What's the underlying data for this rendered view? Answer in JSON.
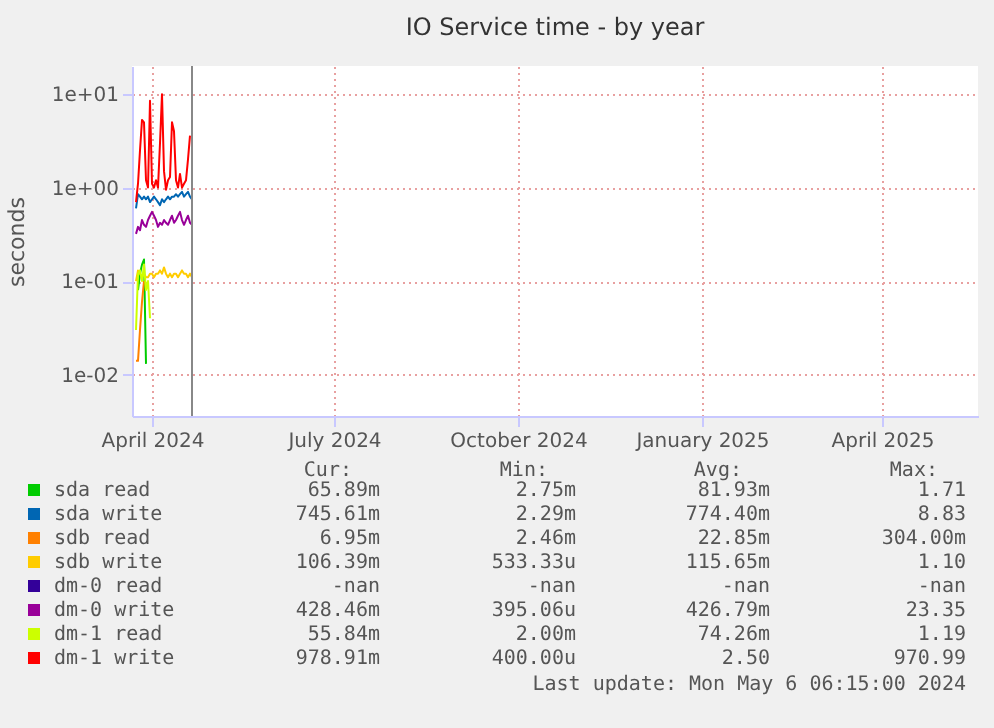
{
  "chart_data": {
    "type": "line",
    "title": "IO Service time - by year",
    "ylabel": "seconds",
    "x": [
      "2024-04-08",
      "2024-04-09",
      "2024-04-10",
      "2024-04-11",
      "2024-04-12",
      "2024-04-13",
      "2024-04-14",
      "2024-04-15",
      "2024-04-16",
      "2024-04-17",
      "2024-04-18",
      "2024-04-19",
      "2024-04-20",
      "2024-04-21",
      "2024-04-22",
      "2024-04-23",
      "2024-04-24",
      "2024-04-25",
      "2024-04-26",
      "2024-04-27",
      "2024-04-28",
      "2024-04-29",
      "2024-04-30",
      "2024-05-01",
      "2024-05-02",
      "2024-05-03",
      "2024-05-04",
      "2024-05-05",
      "2024-05-06"
    ],
    "series": [
      {
        "name": "sda read",
        "color": "#00cc00",
        "values": [
          null,
          0.08,
          0.12,
          0.15,
          0.17,
          0.013,
          null,
          null,
          null,
          null,
          null,
          null,
          null,
          null,
          null,
          null,
          null,
          null,
          null,
          null,
          null,
          null,
          null,
          null,
          null,
          null,
          null,
          null,
          null
        ]
      },
      {
        "name": "sda write",
        "color": "#0066b3",
        "values": [
          0.6,
          0.85,
          0.8,
          0.75,
          0.8,
          0.75,
          0.8,
          0.7,
          0.75,
          0.8,
          0.75,
          0.7,
          0.65,
          0.75,
          0.7,
          0.75,
          0.8,
          0.75,
          0.8,
          0.8,
          0.85,
          0.8,
          0.85,
          0.9,
          0.8,
          0.85,
          0.9,
          0.8,
          0.75
        ]
      },
      {
        "name": "sdb read",
        "color": "#ff8000",
        "values": [
          0.014,
          0.014,
          0.03,
          0.06,
          0.1,
          null,
          null,
          null,
          null,
          null,
          null,
          null,
          null,
          null,
          null,
          null,
          null,
          null,
          null,
          null,
          null,
          null,
          null,
          null,
          null,
          null,
          null,
          null,
          null
        ]
      },
      {
        "name": "sdb write",
        "color": "#ffcc00",
        "values": [
          0.1,
          0.13,
          0.12,
          0.11,
          0.12,
          0.11,
          0.11,
          0.12,
          0.12,
          0.11,
          0.12,
          0.12,
          0.13,
          0.12,
          0.14,
          0.12,
          0.11,
          0.12,
          0.11,
          0.12,
          0.12,
          0.11,
          0.12,
          0.13,
          0.12,
          0.12,
          0.11,
          0.12,
          0.11
        ]
      },
      {
        "name": "dm-0 read",
        "color": "#330099",
        "values": [
          null,
          null,
          null,
          null,
          null,
          null,
          null,
          null,
          null,
          null,
          null,
          null,
          null,
          null,
          null,
          null,
          null,
          null,
          null,
          null,
          null,
          null,
          null,
          null,
          null,
          null,
          null,
          null,
          null
        ]
      },
      {
        "name": "dm-0 write",
        "color": "#990099",
        "values": [
          0.32,
          0.38,
          0.35,
          0.45,
          0.4,
          0.38,
          0.45,
          0.5,
          0.55,
          0.5,
          0.45,
          0.38,
          0.42,
          0.4,
          0.45,
          0.42,
          0.4,
          0.45,
          0.5,
          0.42,
          0.45,
          0.5,
          0.55,
          0.45,
          0.4,
          0.45,
          0.5,
          0.42,
          0.4
        ]
      },
      {
        "name": "dm-1 read",
        "color": "#ccff00",
        "values": [
          0.03,
          0.12,
          0.13,
          0.1,
          0.15,
          0.08,
          0.1,
          0.04,
          null,
          null,
          null,
          null,
          null,
          null,
          null,
          null,
          null,
          null,
          null,
          null,
          null,
          null,
          null,
          null,
          null,
          null,
          null,
          null,
          null
        ]
      },
      {
        "name": "dm-1 write",
        "color": "#ff0000",
        "values": [
          0.7,
          1.1,
          2.5,
          5.3,
          5.0,
          1.2,
          1.0,
          8.5,
          1.1,
          1.0,
          1.2,
          1.0,
          3.0,
          10.0,
          1.5,
          0.95,
          1.2,
          1.3,
          5.0,
          4.0,
          1.2,
          1.0,
          1.4,
          1.0,
          1.1,
          1.2,
          2.0,
          3.6,
          null
        ]
      }
    ],
    "xlim": [
      "2024-04-06",
      "2025-06-03"
    ],
    "xticks": [
      {
        "value": "2024-04-16",
        "label": "April 2024"
      },
      {
        "value": "2024-07-16",
        "label": "July 2024"
      },
      {
        "value": "2024-10-16",
        "label": "October 2024"
      },
      {
        "value": "2025-01-16",
        "label": "January 2025"
      },
      {
        "value": "2025-04-16",
        "label": "April 2025"
      }
    ],
    "ylim": [
      0.0036,
      20
    ],
    "log": true,
    "yticks": [
      {
        "value": 0.01,
        "label": "1e-02"
      },
      {
        "value": 0.1,
        "label": "1e-01"
      },
      {
        "value": 1,
        "label": "1e+00"
      },
      {
        "value": 10,
        "label": "1e+01"
      }
    ],
    "ref_lines": [
      {
        "axis": "x",
        "value": "2024-05-06",
        "color": "#888888"
      }
    ],
    "grid": true,
    "legend": "bottom",
    "annotations": [
      "Cur:",
      "Min:",
      "Avg:",
      "Max:",
      "65.89m",
      "2.75m",
      "81.93m",
      "1.71",
      "745.61m",
      "2.29m",
      "774.40m",
      "8.83",
      "6.95m",
      "2.46m",
      "22.85m",
      "304.00m",
      "106.39m",
      "533.33u",
      "115.65m",
      "1.10",
      "-nan",
      "-nan",
      "-nan",
      "-nan",
      "428.46m",
      "395.06u",
      "426.79m",
      "23.35",
      "55.84m",
      "2.00m",
      "74.26m",
      "1.19",
      "978.91m",
      "400.00u",
      "2.50",
      "970.99",
      "Last update:  Mon May  6 06:15:00 2024"
    ]
  }
}
